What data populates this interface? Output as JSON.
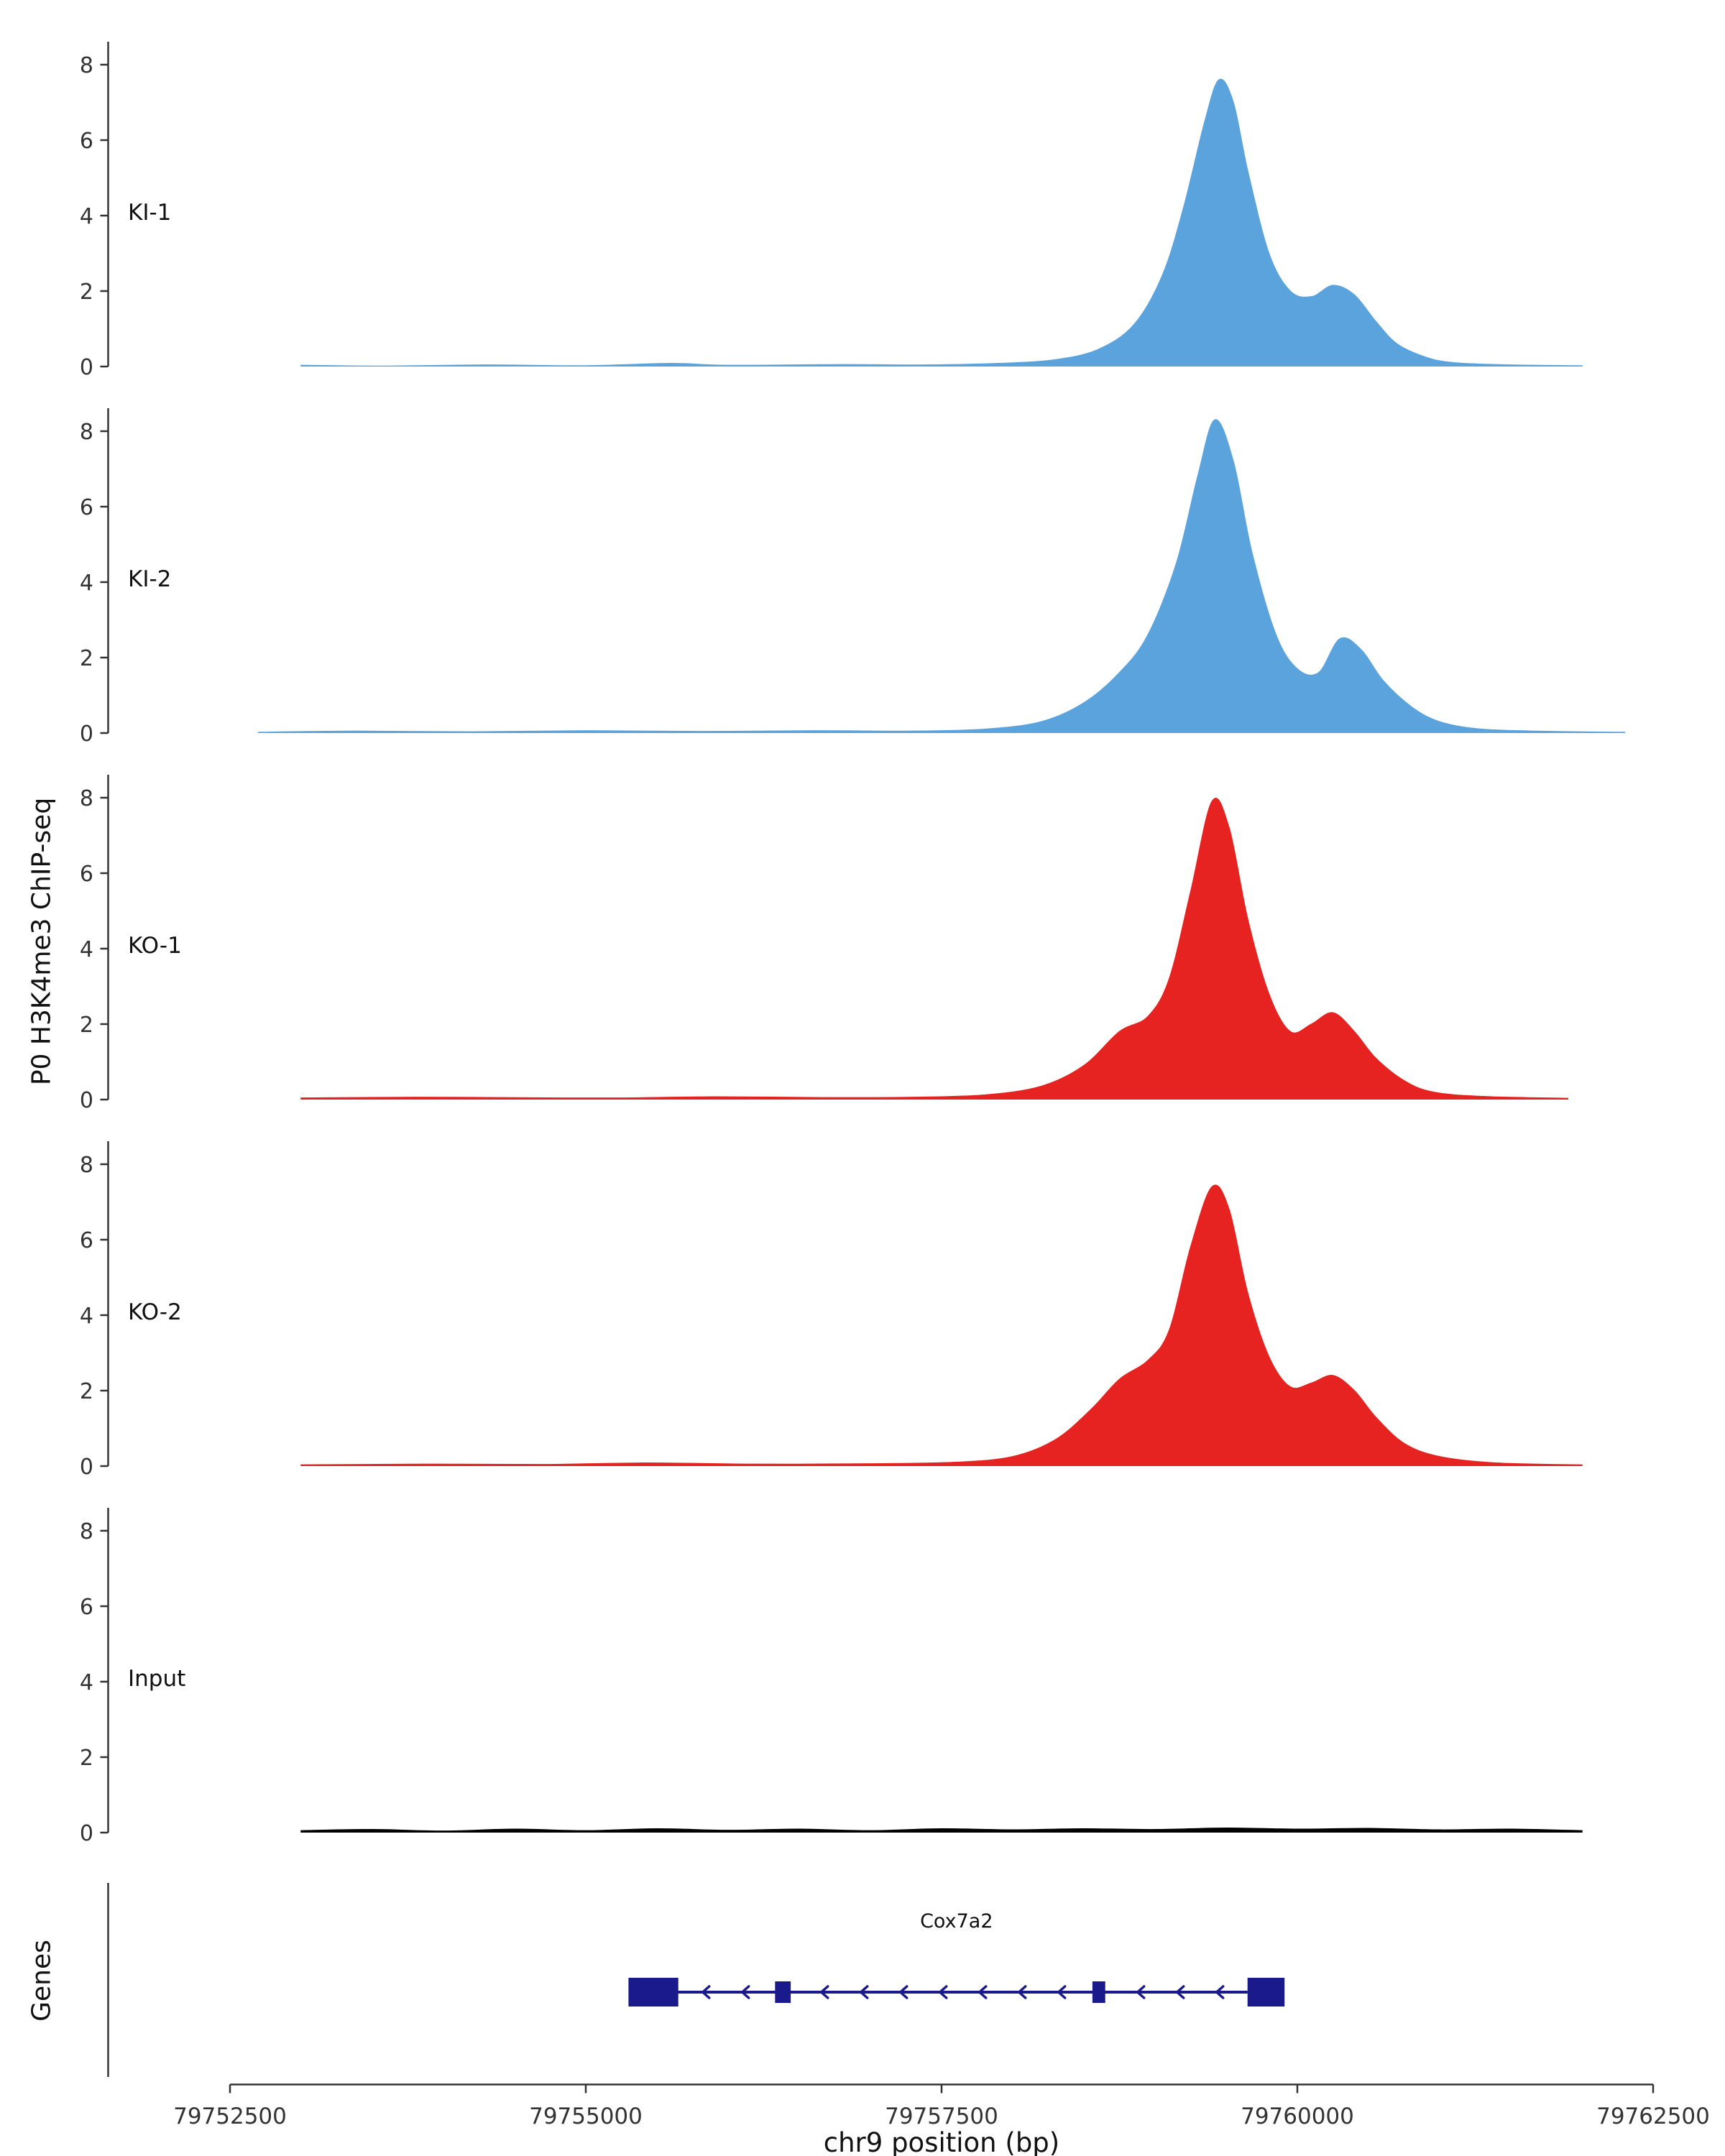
{
  "chart_data": {
    "type": "area",
    "title": "",
    "ylabel": "P0 H3K4me3 ChIP-seq",
    "xlabel": "chr9 position (bp)",
    "x_domain": [
      79752500,
      79762500
    ],
    "x_ticks": [
      79752500,
      79755000,
      79757500,
      79760000,
      79762500
    ],
    "y_ticks": [
      0,
      2,
      4,
      6,
      8
    ],
    "y_max": 8.6,
    "legend": "none",
    "colors": {
      "ki": "#5BA3DC",
      "ko": "#E62320",
      "input": "#000000",
      "gene": "#1A1A8C",
      "axis": "#333333"
    },
    "series": [
      {
        "name": "KI-1",
        "color": "#5BA3DC",
        "points": [
          [
            79753000,
            0.03
          ],
          [
            79753600,
            0.01
          ],
          [
            79754300,
            0.04
          ],
          [
            79755000,
            0.02
          ],
          [
            79755600,
            0.08
          ],
          [
            79756000,
            0.03
          ],
          [
            79756800,
            0.05
          ],
          [
            79757400,
            0.04
          ],
          [
            79757900,
            0.08
          ],
          [
            79758300,
            0.18
          ],
          [
            79758600,
            0.45
          ],
          [
            79758850,
            1.1
          ],
          [
            79759050,
            2.4
          ],
          [
            79759200,
            4.2
          ],
          [
            79759350,
            6.5
          ],
          [
            79759450,
            7.6
          ],
          [
            79759550,
            7.0
          ],
          [
            79759650,
            5.2
          ],
          [
            79759800,
            3.0
          ],
          [
            79759950,
            2.0
          ],
          [
            79760100,
            1.85
          ],
          [
            79760250,
            2.15
          ],
          [
            79760400,
            1.9
          ],
          [
            79760550,
            1.2
          ],
          [
            79760700,
            0.6
          ],
          [
            79760900,
            0.25
          ],
          [
            79761100,
            0.1
          ],
          [
            79761500,
            0.04
          ],
          [
            79762000,
            0.02
          ]
        ]
      },
      {
        "name": "KI-2",
        "color": "#5BA3DC",
        "points": [
          [
            79752700,
            0.02
          ],
          [
            79753400,
            0.05
          ],
          [
            79754200,
            0.03
          ],
          [
            79755000,
            0.06
          ],
          [
            79755800,
            0.04
          ],
          [
            79756600,
            0.06
          ],
          [
            79757300,
            0.05
          ],
          [
            79757800,
            0.1
          ],
          [
            79758200,
            0.3
          ],
          [
            79758500,
            0.8
          ],
          [
            79758750,
            1.6
          ],
          [
            79758950,
            2.6
          ],
          [
            79759150,
            4.5
          ],
          [
            79759300,
            6.8
          ],
          [
            79759420,
            8.3
          ],
          [
            79759550,
            7.2
          ],
          [
            79759680,
            4.8
          ],
          [
            79759850,
            2.6
          ],
          [
            79760000,
            1.7
          ],
          [
            79760150,
            1.6
          ],
          [
            79760300,
            2.5
          ],
          [
            79760450,
            2.2
          ],
          [
            79760600,
            1.4
          ],
          [
            79760800,
            0.7
          ],
          [
            79761000,
            0.3
          ],
          [
            79761300,
            0.1
          ],
          [
            79761800,
            0.04
          ],
          [
            79762300,
            0.02
          ]
        ]
      },
      {
        "name": "KO-1",
        "color": "#E62320",
        "points": [
          [
            79753000,
            0.04
          ],
          [
            79753800,
            0.06
          ],
          [
            79754400,
            0.05
          ],
          [
            79755200,
            0.04
          ],
          [
            79755900,
            0.07
          ],
          [
            79756700,
            0.05
          ],
          [
            79757300,
            0.06
          ],
          [
            79757800,
            0.12
          ],
          [
            79758200,
            0.35
          ],
          [
            79758500,
            0.9
          ],
          [
            79758750,
            1.8
          ],
          [
            79758950,
            2.2
          ],
          [
            79759100,
            3.2
          ],
          [
            79759250,
            5.5
          ],
          [
            79759400,
            7.9
          ],
          [
            79759520,
            7.2
          ],
          [
            79759650,
            4.8
          ],
          [
            79759800,
            2.8
          ],
          [
            79759950,
            1.8
          ],
          [
            79760100,
            2.0
          ],
          [
            79760250,
            2.3
          ],
          [
            79760400,
            1.8
          ],
          [
            79760550,
            1.1
          ],
          [
            79760750,
            0.5
          ],
          [
            79760950,
            0.2
          ],
          [
            79761300,
            0.08
          ],
          [
            79761900,
            0.03
          ]
        ]
      },
      {
        "name": "KO-2",
        "color": "#E62320",
        "points": [
          [
            79753000,
            0.03
          ],
          [
            79753900,
            0.05
          ],
          [
            79754700,
            0.04
          ],
          [
            79755400,
            0.08
          ],
          [
            79756200,
            0.05
          ],
          [
            79757000,
            0.06
          ],
          [
            79757600,
            0.1
          ],
          [
            79758000,
            0.25
          ],
          [
            79758300,
            0.7
          ],
          [
            79758550,
            1.5
          ],
          [
            79758750,
            2.3
          ],
          [
            79758950,
            2.8
          ],
          [
            79759100,
            3.6
          ],
          [
            79759250,
            5.8
          ],
          [
            79759400,
            7.4
          ],
          [
            79759520,
            6.8
          ],
          [
            79759650,
            4.6
          ],
          [
            79759800,
            2.9
          ],
          [
            79759950,
            2.1
          ],
          [
            79760100,
            2.2
          ],
          [
            79760250,
            2.4
          ],
          [
            79760400,
            2.0
          ],
          [
            79760550,
            1.3
          ],
          [
            79760750,
            0.6
          ],
          [
            79761000,
            0.25
          ],
          [
            79761400,
            0.08
          ],
          [
            79762000,
            0.03
          ]
        ]
      },
      {
        "name": "Input",
        "color": "#000000",
        "points": [
          [
            79753000,
            0.05
          ],
          [
            79753500,
            0.08
          ],
          [
            79754000,
            0.04
          ],
          [
            79754500,
            0.09
          ],
          [
            79755000,
            0.05
          ],
          [
            79755500,
            0.1
          ],
          [
            79756000,
            0.06
          ],
          [
            79756500,
            0.09
          ],
          [
            79757000,
            0.05
          ],
          [
            79757500,
            0.1
          ],
          [
            79758000,
            0.07
          ],
          [
            79758500,
            0.1
          ],
          [
            79759000,
            0.08
          ],
          [
            79759500,
            0.12
          ],
          [
            79760000,
            0.09
          ],
          [
            79760500,
            0.11
          ],
          [
            79761000,
            0.07
          ],
          [
            79761500,
            0.09
          ],
          [
            79762000,
            0.05
          ]
        ]
      }
    ],
    "genes": {
      "panel_label": "Genes",
      "gene": {
        "name": "Cox7a2",
        "strand": "-",
        "line": [
          79755640,
          79759650
        ],
        "exons": [
          {
            "start": 79755300,
            "end": 79755650,
            "size": "tall"
          },
          {
            "start": 79756330,
            "end": 79756440,
            "size": "small"
          },
          {
            "start": 79758560,
            "end": 79758650,
            "size": "small"
          },
          {
            "start": 79759650,
            "end": 79759910,
            "size": "tall"
          }
        ]
      }
    }
  }
}
